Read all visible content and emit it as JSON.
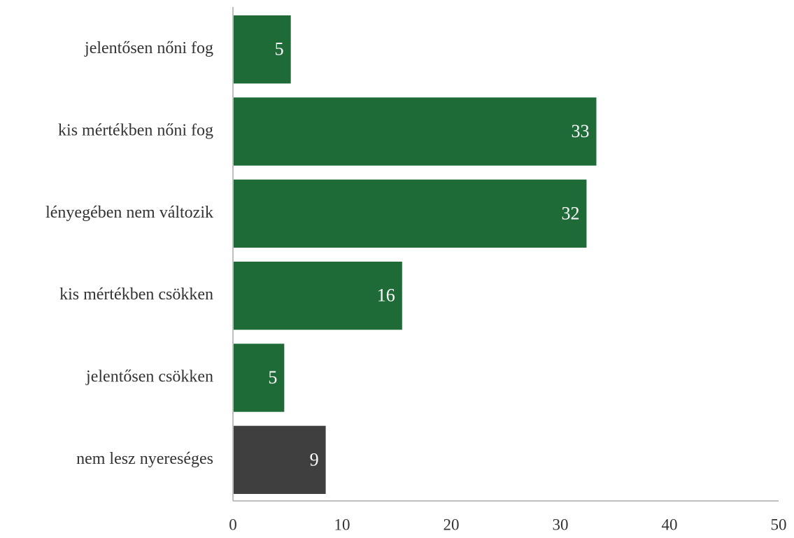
{
  "chart_data": {
    "type": "hbar",
    "categories": [
      "jelentősen nőni fog",
      "kis mértékben nőni fog",
      "lényegében nem változik",
      "kis mértékben csökken",
      "jelentősen csökken",
      "nem lesz nyereséges"
    ],
    "values": [
      5.3,
      33.3,
      32.4,
      15.5,
      4.7,
      8.5
    ],
    "value_labels": [
      "5",
      "33",
      "32",
      "16",
      "5",
      "9"
    ],
    "colors": [
      "#1e6b38",
      "#1e6b38",
      "#1e6b38",
      "#1e6b38",
      "#1e6b38",
      "#3f3f3f"
    ],
    "xlim": [
      0,
      50
    ],
    "xticks": [
      0,
      10,
      20,
      30,
      40,
      50
    ]
  }
}
